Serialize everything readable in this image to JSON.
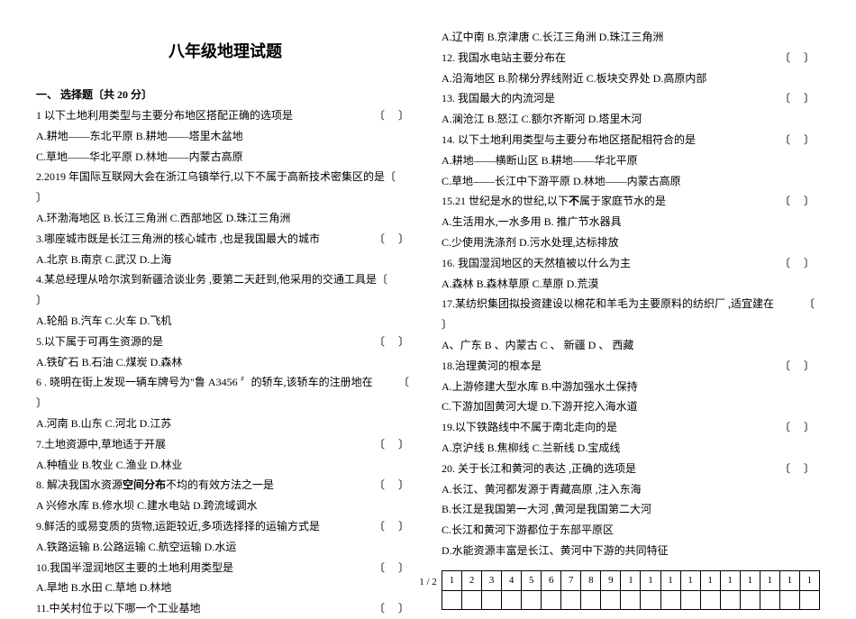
{
  "title": "八年级地理试题",
  "section_header": "一、 选择题〔共 20 分〕",
  "left_lines": [
    {
      "text": "1 以下土地利用类型与主要分布地区搭配正确的选项是",
      "paren": "〔   〕"
    },
    {
      "text": "A.耕地——东北平原        B.耕地——塔里木盆地"
    },
    {
      "text": "C.草地——华北平原        D.林地——内蒙古高原"
    },
    {
      "text": "2.2019 年国际互联网大会在浙江乌镇举行,以下不属于高新技术密集区的是〔"
    },
    {
      "text": "〕"
    },
    {
      "text": "A.环渤海地区   B.长江三角洲  C.西部地区     D.珠江三角洲"
    },
    {
      "text": "3.哪座城市既是长江三角洲的核心城市 ,也是我国最大的城市",
      "paren": "〔   〕"
    },
    {
      "text": "A.北京      B.南京       C.武汉         D.上海"
    },
    {
      "text": "4.某总经理从哈尔滨到新疆洽谈业务 ,要第二天赶到,他采用的交通工具是〔"
    },
    {
      "text": "〕"
    },
    {
      "text": "A.轮船     B.汽车       C.火车     D.飞机"
    },
    {
      "text": "5.以下属于可再生资源的是",
      "paren": "〔     〕"
    },
    {
      "text": "A.铁矿石     B.石油      C.煤炭     D.森林"
    },
    {
      "text": "6 . 晓明在街上发现一辆车牌号为\"鲁 A3456 〞的轿车,该轿车的注册地在",
      "paren": "〔"
    },
    {
      "text": "〕"
    },
    {
      "text": "A.河南      B.山东     C.河北      D.江苏"
    },
    {
      "text": "7.土地资源中,草地适于开展",
      "paren": "〔   〕"
    },
    {
      "text": "A.种植业       B.牧业       C.渔业     D.林业"
    },
    {
      "html": "8. 解决我国水资源<span class='bold'>空间分布</span>不均的有效方法之一是",
      "paren": "〔   〕"
    },
    {
      "text": "A 兴修水库      B.修水坝     C.建水电站    D.跨流域调水"
    },
    {
      "text": "9.鲜活的或易变质的货物,运距较近,多项选择择的运输方式是",
      "paren": "〔   〕"
    },
    {
      "text": "A.铁路运输   B.公路运输    C.航空运输   D.水运"
    },
    {
      "text": "10.我国半湿润地区主要的土地利用类型是",
      "paren": "〔    〕"
    },
    {
      "text": "A.旱地       B.水田      C.草地        D.林地"
    },
    {
      "text": "11.中关村位于以下哪一个工业基地",
      "paren": "〔    〕"
    }
  ],
  "right_lines": [
    {
      "text": "A.辽中南     B.京津唐      C.长江三角洲   D.珠江三角洲"
    },
    {
      "text": "12. 我国水电站主要分布在",
      "paren": "〔    〕"
    },
    {
      "text": "A.沿海地区    B.阶梯分界线附近   C.板块交界处    D.高原内部"
    },
    {
      "text": "13. 我国最大的内流河是",
      "paren": "〔    〕"
    },
    {
      "text": "A.澜沧江      B.怒江           C.额尔齐斯河    D.塔里木河"
    },
    {
      "text": "14. 以下土地利用类型与主要分布地区搭配相符合的是",
      "paren": "〔     〕"
    },
    {
      "text": "A.耕地——横断山区            B.耕地——华北平原"
    },
    {
      "text": "C.草地——长江中下游平原     D.林地——内蒙古高原"
    },
    {
      "html": "15.21 世纪是水的世纪,以下<span class='bold'>不</span>属于家庭节水的是",
      "paren": "〔    〕"
    },
    {
      "text": "A.生活用水,一水多用           B. 推广节水器具"
    },
    {
      "text": "C.少使用洗涤剂                D.污水处理,达标排放"
    },
    {
      "text": "16. 我国湿润地区的天然植被以什么为主",
      "paren": "〔   〕"
    },
    {
      "text": "A.森林      B.森林草原        C.草原        D.荒漠"
    },
    {
      "text": "17.某纺织集团拟投资建设以棉花和羊毛为主要原料的纺织厂 ,适宜建在",
      "paren": "〔"
    },
    {
      "text": "〕"
    },
    {
      "text": "A、广东    B 、内蒙古      C 、 新疆      D 、 西藏"
    },
    {
      "text": "18.治理黄河的根本是",
      "paren": "〔   〕"
    },
    {
      "text": " A.上游修建大型水库              B.中游加强水土保持"
    },
    {
      "text": " C.下游加固黄河大堤              D.下游开挖入海水道"
    },
    {
      "text": "19.以下铁路线中不属于南北走向的是",
      "paren": "〔   〕"
    },
    {
      "text": " A.京沪线      B.焦柳线        C.兰新线       D.宝成线"
    },
    {
      "text": "20. 关于长江和黄河的表达 ,正确的选项是",
      "paren": "〔   〕"
    },
    {
      "text": " A.长江、黄河都发源于青藏高原 ,注入东海"
    },
    {
      "text": " B.长江是我国第一大河 ,黄河是我国第二大河"
    },
    {
      "text": " C.长江和黄河下游都位于东部平原区"
    },
    {
      "text": " D.水能资源丰富是长江、黄河中下游的共同特征"
    }
  ],
  "grid_cells": [
    "1",
    "2",
    "3",
    "4",
    "5",
    "6",
    "7",
    "8",
    "9",
    "1",
    "1",
    "1",
    "1",
    "1",
    "1",
    "1",
    "1",
    "1",
    "1"
  ],
  "footer": "1 / 2"
}
